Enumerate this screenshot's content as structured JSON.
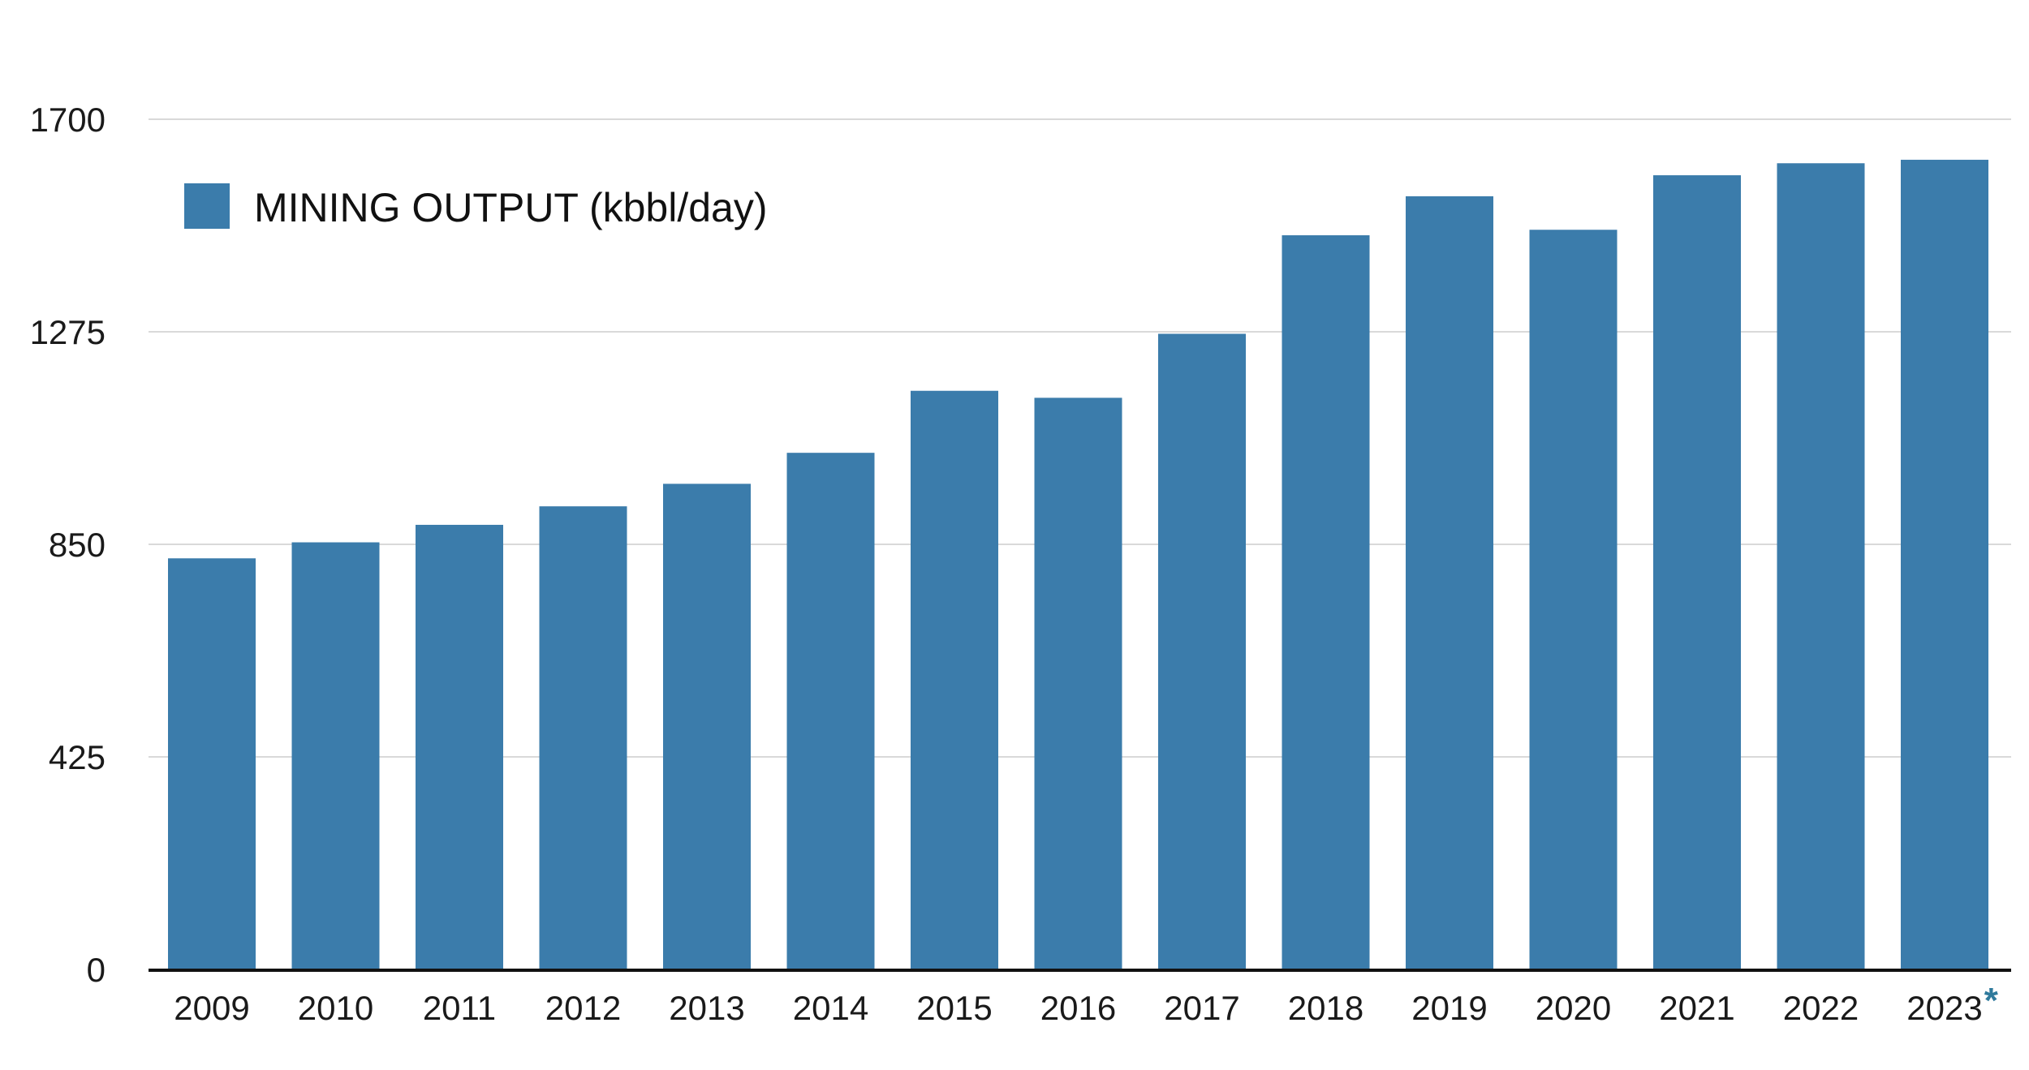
{
  "chart_data": {
    "type": "bar",
    "title": "",
    "xlabel": "",
    "ylabel": "",
    "categories": [
      "2009",
      "2010",
      "2011",
      "2012",
      "2013",
      "2014",
      "2015",
      "2016",
      "2017",
      "2018",
      "2019",
      "2020",
      "2021",
      "2022",
      "2023"
    ],
    "series": [
      {
        "name": "MINING OUTPUT (kbbl/day)",
        "values": [
          822,
          854,
          889,
          926,
          971,
          1033,
          1157,
          1143,
          1271,
          1468,
          1546,
          1479,
          1588,
          1612,
          1619
        ]
      }
    ],
    "ylim": [
      0,
      1700
    ],
    "yticks": [
      "0",
      "425",
      "850",
      "1275",
      "1700"
    ],
    "grid": true,
    "legend": "top-left",
    "footnote_marker": "*",
    "footnote_category": "2023"
  },
  "colors": {
    "bar": "#3b7cab",
    "grid": "#d9d9d9",
    "axis": "#111111",
    "footnote": "#2f7a9c"
  }
}
